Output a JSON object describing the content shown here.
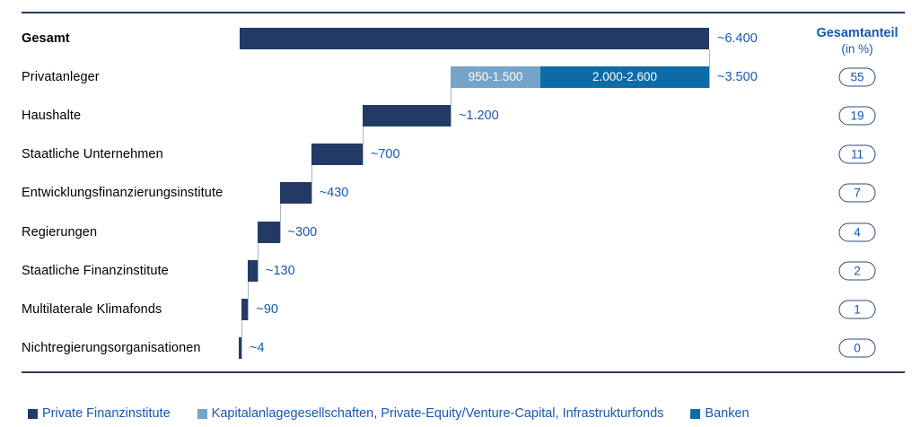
{
  "colors": {
    "navy": "#243a66",
    "light_blue": "#76a3c8",
    "mid_blue": "#0d6ca7",
    "text_blue": "#1658b2",
    "rule_navy": "#2b3a64",
    "connector_gray": "#a7b5c9",
    "pill_border": "#2c4878",
    "background": "#ffffff",
    "bar_label_white": "#ffffff"
  },
  "share_column": {
    "title": "Gesamtanteil",
    "subtitle": "(in %)"
  },
  "chart_data": {
    "type": "bar",
    "variant": "horizontal-waterfall",
    "title": "",
    "xlabel": "",
    "ylabel": "",
    "grid": false,
    "axis": "none",
    "value_scale_note": "bar lengths proportional to values; total bar spans full chart width",
    "rows": [
      {
        "label": "Gesamt",
        "bold": true,
        "value": 6400,
        "value_label": "~6.400",
        "share": null,
        "color": "navy"
      },
      {
        "label": "Privatanleger",
        "bold": false,
        "value": 3500,
        "value_label": "~3.500",
        "share": 55,
        "segments": [
          {
            "label": "950-1.500",
            "value": 1225,
            "color": "light_blue"
          },
          {
            "label": "2.000-2.600",
            "value": 2300,
            "color": "mid_blue"
          }
        ]
      },
      {
        "label": "Haushalte",
        "bold": false,
        "value": 1200,
        "value_label": "~1.200",
        "share": 19,
        "color": "navy"
      },
      {
        "label": "Staatliche Unternehmen",
        "bold": false,
        "value": 700,
        "value_label": "~700",
        "share": 11,
        "color": "navy"
      },
      {
        "label": "Entwicklungsfinanzierungsinstitute",
        "bold": false,
        "value": 430,
        "value_label": "~430",
        "share": 7,
        "color": "navy"
      },
      {
        "label": "Regierungen",
        "bold": false,
        "value": 300,
        "value_label": "~300",
        "share": 4,
        "color": "navy"
      },
      {
        "label": "Staatliche Finanzinstitute",
        "bold": false,
        "value": 130,
        "value_label": "~130",
        "share": 2,
        "color": "navy"
      },
      {
        "label": "Multilaterale Klimafonds",
        "bold": false,
        "value": 90,
        "value_label": "~90",
        "share": 1,
        "color": "navy"
      },
      {
        "label": "Nichtregierungsorganisationen",
        "bold": false,
        "value": 4,
        "value_label": "~4",
        "share": 0,
        "color": "navy"
      }
    ],
    "legend": [
      {
        "label": "Private Finanzinstitute",
        "color": "navy"
      },
      {
        "label": "Kapitalanlagegesellschaften, Private-Equity/Venture-Capital, Infrastrukturfonds",
        "color": "light_blue"
      },
      {
        "label": "Banken",
        "color": "mid_blue"
      }
    ],
    "legend_position": "bottom"
  }
}
